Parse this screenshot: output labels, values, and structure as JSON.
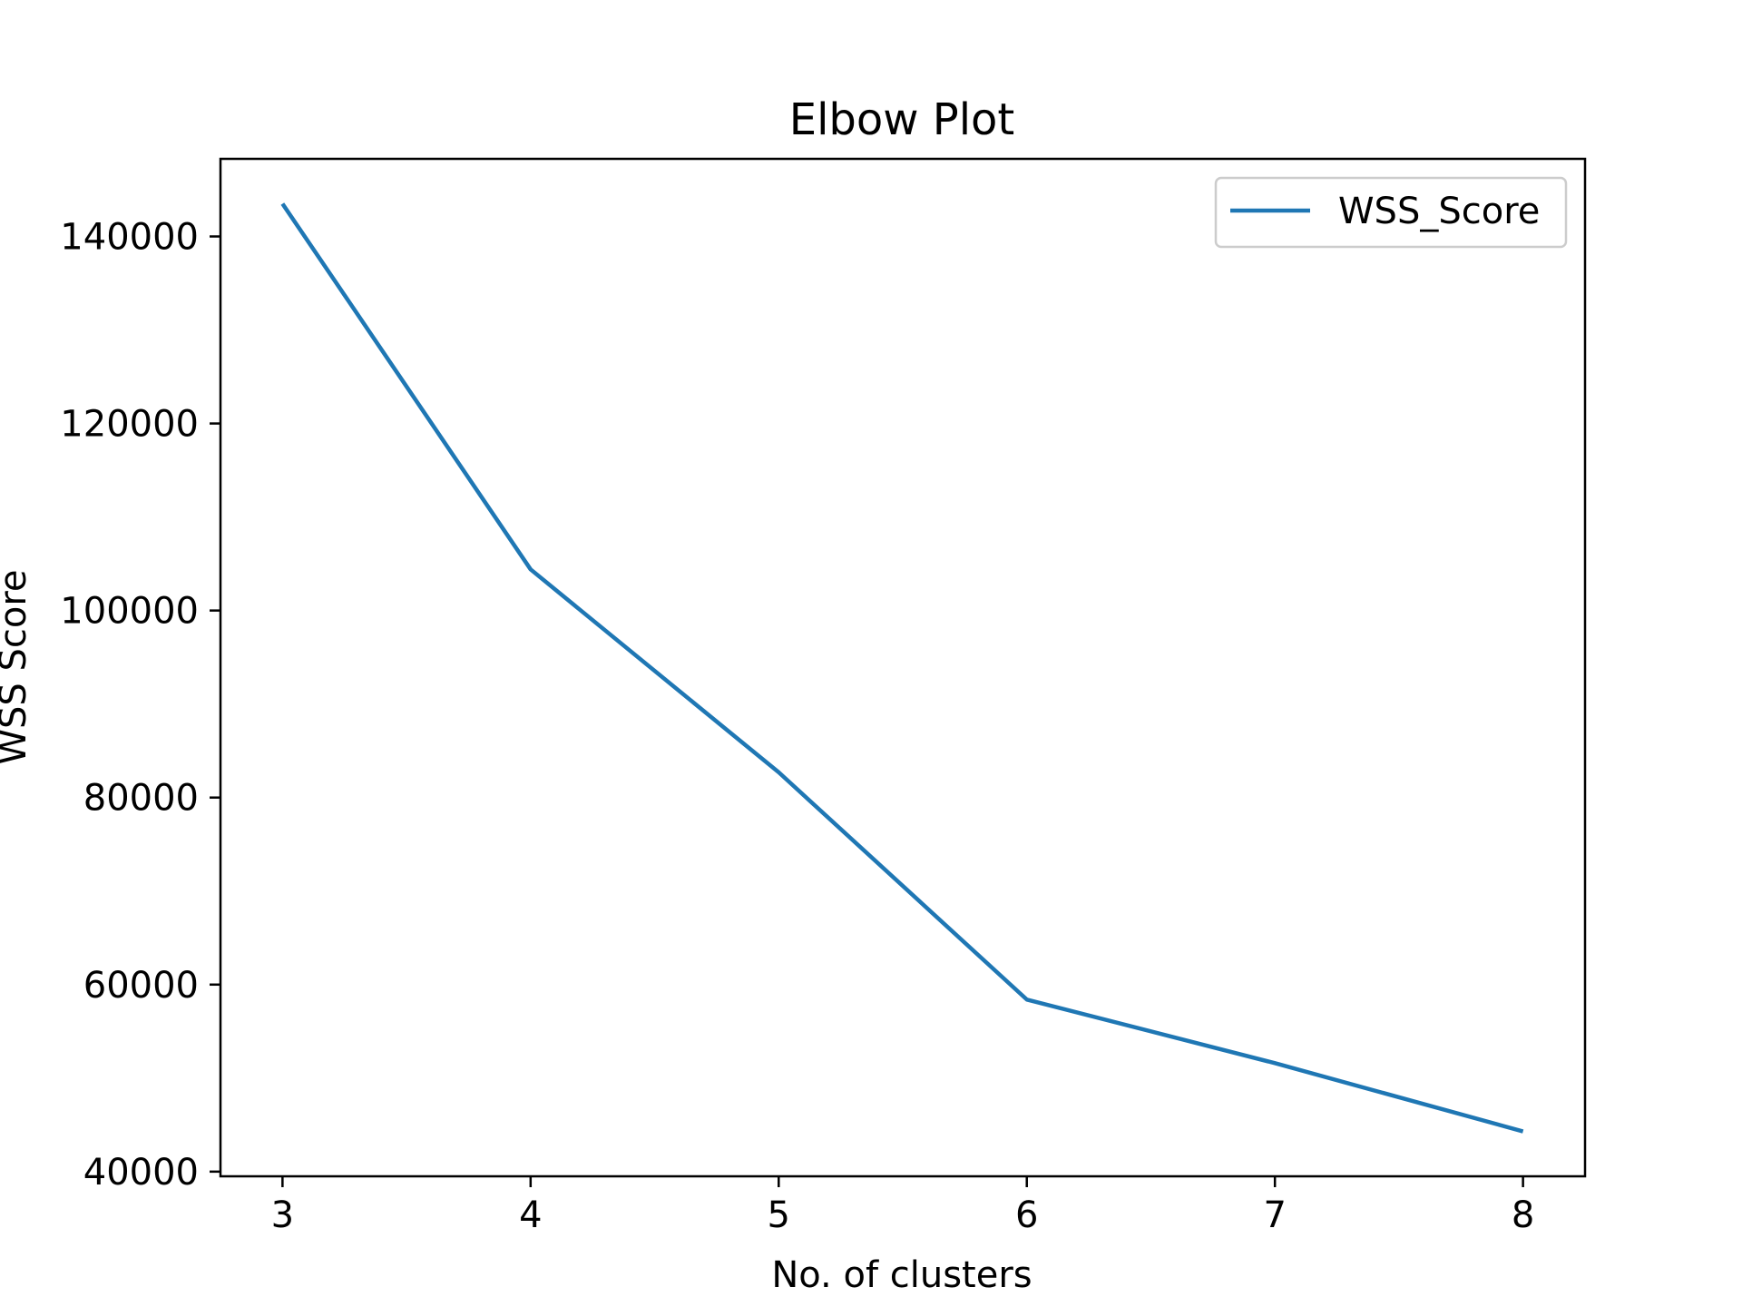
{
  "chart_data": {
    "type": "line",
    "title": "Elbow Plot",
    "xlabel": "No. of clusters",
    "ylabel": "WSS Score",
    "x": [
      3,
      4,
      5,
      6,
      7,
      8
    ],
    "series": [
      {
        "name": "WSS_Score",
        "color": "#1f77b4",
        "values": [
          143500,
          104400,
          82700,
          58400,
          51600,
          44300
        ]
      }
    ],
    "xlim": [
      2.75,
      8.25
    ],
    "ylim": [
      39500,
      148300
    ],
    "xticks": [
      "3",
      "4",
      "5",
      "6",
      "7",
      "8"
    ],
    "yticks": [
      "40000",
      "60000",
      "80000",
      "100000",
      "120000",
      "140000"
    ],
    "ytick_values": [
      40000,
      60000,
      80000,
      100000,
      120000,
      140000
    ],
    "grid": false,
    "legend": "upper right"
  }
}
